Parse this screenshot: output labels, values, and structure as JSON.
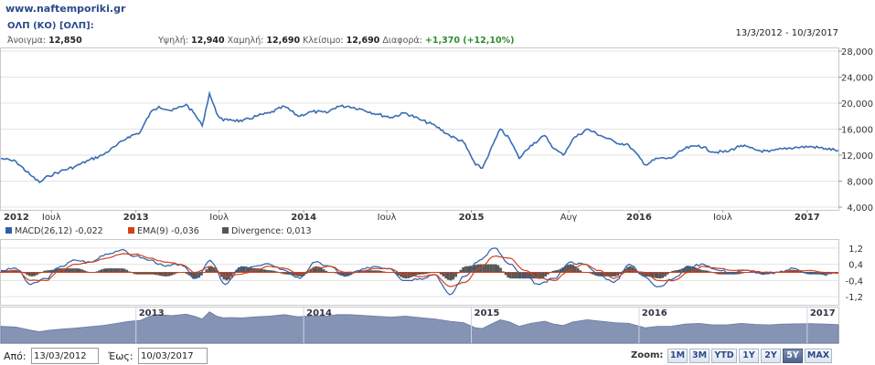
{
  "header": {
    "site": "www.naftemporiki.gr",
    "stock_title": "ΟΛΠ (ΚΟ) [ΟΛΠ]:",
    "open_label": "Άνοιγμα:",
    "open_value": "12,850",
    "high_label": "Υψηλή:",
    "high_value": "12,940",
    "low_label": "Χαμηλή:",
    "low_value": "12,690",
    "close_label": "Κλείσιμο:",
    "close_value": "12,690",
    "change_label": "Διαφορά:",
    "change_value": "+1,370 (+12,10%)",
    "date_range": "13/3/2012 - 10/3/2017"
  },
  "colors": {
    "price_line": "#3a6db5",
    "macd": "#2f5fa8",
    "ema": "#d2401c",
    "divergence": "#555555",
    "navigator_fill": "#8593b5",
    "grid": "#e3e3e3",
    "positive": "#2e8b2e"
  },
  "macd_legend": {
    "macd": "MACD(26,12) -0,022",
    "ema": "EMA(9) -0,036",
    "divergence": "Divergence: 0,013"
  },
  "navigator_labels": [
    "2013",
    "2014",
    "2015",
    "2016",
    "2017"
  ],
  "chart_data": [
    {
      "type": "line",
      "title": "",
      "series_name": "ΟΛΠ",
      "x_ticks": [
        "2012",
        "Ιουλ",
        "2013",
        "Ιουλ",
        "2014",
        "Ιουλ",
        "2015",
        "Αυγ",
        "2016",
        "Ιουλ",
        "2017"
      ],
      "x_ticks_bold": [
        true,
        false,
        true,
        false,
        true,
        false,
        true,
        false,
        true,
        false,
        true
      ],
      "y_ticks": [
        "28,000",
        "24,000",
        "20,000",
        "16,000",
        "12,000",
        "8,000",
        "4,000"
      ],
      "ylim": [
        4,
        28
      ],
      "grid": true,
      "x": [
        "2012-03-13",
        "2012-04-15",
        "2012-05-15",
        "2012-06-05",
        "2012-06-25",
        "2012-07-20",
        "2012-08-20",
        "2012-09-20",
        "2012-10-20",
        "2012-11-20",
        "2012-12-15",
        "2013-01-10",
        "2013-02-01",
        "2013-02-20",
        "2013-03-20",
        "2013-04-20",
        "2013-05-10",
        "2013-05-25",
        "2013-06-10",
        "2013-06-25",
        "2013-07-10",
        "2013-07-25",
        "2013-08-20",
        "2013-09-20",
        "2013-10-20",
        "2013-11-20",
        "2013-12-20",
        "2014-01-20",
        "2014-02-20",
        "2014-03-15",
        "2014-04-10",
        "2014-05-10",
        "2014-06-10",
        "2014-07-10",
        "2014-08-10",
        "2014-09-10",
        "2014-10-15",
        "2014-11-15",
        "2014-12-15",
        "2015-01-10",
        "2015-01-25",
        "2015-02-10",
        "2015-03-05",
        "2015-03-25",
        "2015-04-15",
        "2015-05-10",
        "2015-06-10",
        "2015-06-30",
        "2015-07-20",
        "2015-08-10",
        "2015-09-10",
        "2015-10-10",
        "2015-11-10",
        "2015-12-10",
        "2016-01-15",
        "2016-02-10",
        "2016-03-10",
        "2016-04-10",
        "2016-05-10",
        "2016-06-10",
        "2016-07-10",
        "2016-08-10",
        "2016-09-10",
        "2016-10-10",
        "2016-11-10",
        "2016-12-10",
        "2017-01-10",
        "2017-02-10",
        "2017-03-10"
      ],
      "values": [
        11.5,
        11.0,
        9.0,
        7.8,
        8.8,
        9.5,
        10.2,
        11.2,
        12.0,
        13.5,
        14.8,
        15.5,
        18.5,
        19.5,
        18.8,
        19.8,
        18.2,
        16.5,
        21.5,
        18.5,
        17.3,
        17.5,
        17.2,
        18.0,
        18.5,
        19.5,
        18.0,
        18.7,
        18.5,
        19.5,
        19.5,
        19.0,
        18.3,
        17.8,
        18.5,
        17.5,
        16.5,
        15.0,
        14.0,
        10.5,
        10.0,
        12.5,
        16.0,
        14.5,
        11.5,
        13.5,
        15.0,
        13.0,
        12.0,
        14.5,
        16.0,
        15.0,
        14.0,
        13.5,
        10.5,
        11.5,
        11.5,
        13.0,
        13.5,
        12.5,
        12.5,
        13.5,
        12.8,
        12.5,
        13.0,
        13.2,
        13.3,
        13.0,
        12.7
      ]
    },
    {
      "type": "line",
      "title": "",
      "y_ticks": [
        "1,2",
        "0,4",
        "-0,4",
        "-1,2"
      ],
      "ylim": [
        -1.6,
        1.6
      ],
      "series": [
        {
          "name": "MACD(26,12)",
          "last": "-0,022",
          "values": [
            0.1,
            0.2,
            -0.6,
            -0.3,
            0.3,
            0.6,
            0.5,
            0.9,
            1.1,
            0.8,
            0.6,
            0.3,
            0.4,
            -0.3,
            0.6,
            -0.6,
            0.2,
            0.3,
            0.4,
            0.1,
            -0.3,
            0.5,
            0.3,
            -0.2,
            0.1,
            0.3,
            0.2,
            -0.4,
            -0.3,
            -0.1,
            -1.1,
            -0.2,
            0.6,
            1.2,
            0.4,
            -0.2,
            -0.6,
            -0.3,
            0.5,
            0.4,
            -0.1,
            -0.5,
            0.4,
            -0.2,
            -0.7,
            -0.3,
            0.3,
            0.4,
            0.1,
            0.0,
            0.1,
            -0.1,
            0.0,
            0.2,
            0.0,
            -0.1,
            -0.02
          ]
        },
        {
          "name": "EMA(9)",
          "last": "-0,036",
          "values": [
            0.0,
            0.1,
            -0.4,
            -0.4,
            0.1,
            0.4,
            0.5,
            0.7,
            0.9,
            0.9,
            0.7,
            0.5,
            0.4,
            0.0,
            0.3,
            -0.2,
            -0.1,
            0.1,
            0.3,
            0.2,
            -0.1,
            0.2,
            0.3,
            0.0,
            0.0,
            0.2,
            0.2,
            -0.1,
            -0.2,
            -0.1,
            -0.7,
            -0.5,
            0.2,
            0.8,
            0.7,
            0.1,
            -0.3,
            -0.4,
            0.1,
            0.4,
            0.1,
            -0.3,
            0.1,
            0.0,
            -0.4,
            -0.4,
            0.0,
            0.3,
            0.2,
            0.1,
            0.1,
            0.0,
            0.0,
            0.1,
            0.1,
            0.0,
            -0.036
          ]
        },
        {
          "name": "Divergence",
          "last": "0,013",
          "values": [
            0.1,
            0.1,
            -0.2,
            0.1,
            0.2,
            0.2,
            0.0,
            0.2,
            0.2,
            -0.1,
            -0.1,
            -0.2,
            0.0,
            -0.3,
            0.3,
            -0.4,
            0.3,
            0.2,
            0.1,
            -0.1,
            -0.2,
            0.3,
            0.0,
            -0.2,
            0.1,
            0.1,
            0.0,
            -0.3,
            -0.1,
            0.0,
            -0.4,
            0.3,
            0.4,
            0.4,
            -0.3,
            -0.3,
            -0.3,
            0.1,
            0.4,
            0.0,
            -0.2,
            -0.2,
            0.3,
            -0.2,
            -0.3,
            0.1,
            0.3,
            0.1,
            -0.1,
            -0.1,
            0.0,
            -0.1,
            0.0,
            0.1,
            -0.1,
            -0.1,
            0.013
          ]
        }
      ]
    }
  ],
  "footer": {
    "from_label": "Από:",
    "from_value": "13/03/2012",
    "to_label": "Έως:",
    "to_value": "10/03/2017",
    "zoom_label": "Zoom:",
    "zoom_buttons": [
      "1M",
      "3M",
      "YTD",
      "1Y",
      "2Y",
      "5Y",
      "MAX"
    ],
    "zoom_active": "5Y"
  }
}
